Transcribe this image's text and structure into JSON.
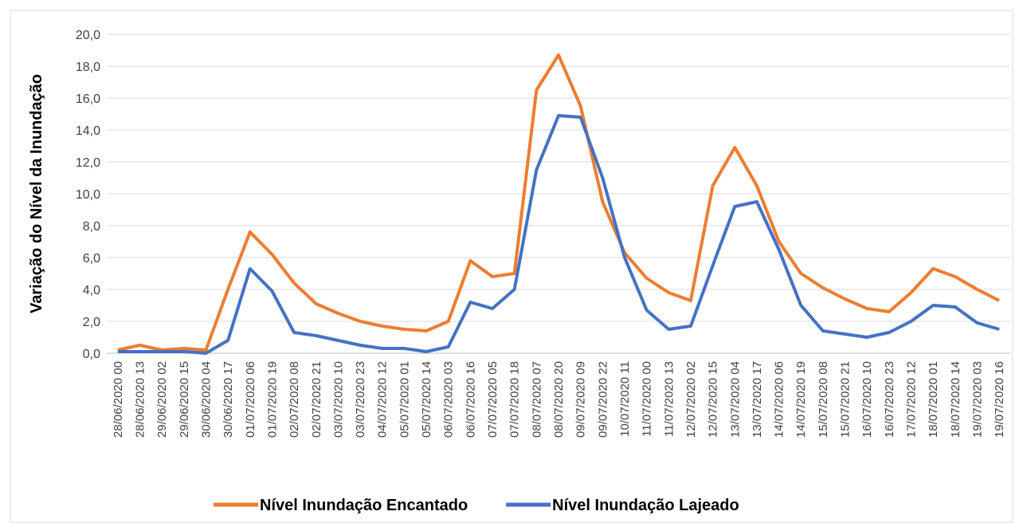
{
  "chart_data": {
    "type": "line",
    "y_label": "Variação  do Nível da Inundação",
    "categories": [
      "28/06/2020 00",
      "28/06/2020 13",
      "29/06/2020 02",
      "29/06/2020 15",
      "30/06/2020 04",
      "30/06/2020 17",
      "01/07/2020 06",
      "01/07/2020 19",
      "02/07/2020 08",
      "02/07/2020 21",
      "03/07/2020 10",
      "03/07/2020 23",
      "04/07/2020 12",
      "05/07/2020 01",
      "05/07/2020 14",
      "06/07/2020 03",
      "06/07/2020 16",
      "07/07/2020 05",
      "07/07/2020 18",
      "08/07/2020 07",
      "08/07/2020 20",
      "09/07/2020 09",
      "09/07/2020 22",
      "10/07/2020 11",
      "11/07/2020 00",
      "11/07/2020 13",
      "12/07/2020 02",
      "12/07/2020 15",
      "13/07/2020 04",
      "13/07/2020 17",
      "14/07/2020 06",
      "14/07/2020 19",
      "15/07/2020 08",
      "15/07/2020 21",
      "16/07/2020 10",
      "16/07/2020 23",
      "17/07/2020 12",
      "18/07/2020 01",
      "18/07/2020 14",
      "19/07/2020 03",
      "19/07/2020 16"
    ],
    "series": [
      {
        "name": "Nível Inundação Encantado",
        "color": "#ed7d31",
        "values": [
          0.2,
          0.5,
          0.2,
          0.3,
          0.2,
          4.0,
          7.6,
          6.2,
          4.4,
          3.1,
          2.5,
          2.0,
          1.7,
          1.5,
          1.4,
          2.0,
          5.8,
          4.8,
          5.0,
          16.5,
          18.7,
          15.5,
          9.5,
          6.3,
          4.7,
          3.8,
          3.3,
          10.5,
          12.9,
          10.5,
          7.0,
          5.0,
          4.1,
          3.4,
          2.8,
          2.6,
          3.8,
          5.3,
          4.8,
          4.0,
          3.3
        ]
      },
      {
        "name": "Nível Inundação Lajeado",
        "color": "#4472c4",
        "values": [
          0.1,
          0.1,
          0.1,
          0.1,
          0.0,
          0.8,
          5.3,
          3.9,
          1.3,
          1.1,
          0.8,
          0.5,
          0.3,
          0.3,
          0.1,
          0.4,
          3.2,
          2.8,
          4.0,
          11.5,
          14.9,
          14.8,
          11.0,
          6.0,
          2.7,
          1.5,
          1.7,
          5.5,
          9.2,
          9.5,
          6.5,
          3.0,
          1.4,
          1.2,
          1.0,
          1.3,
          2.0,
          3.0,
          2.9,
          1.9,
          1.5
        ]
      }
    ],
    "ylim": [
      0,
      20
    ],
    "yticks": [
      {
        "value": 0,
        "label": "0,0"
      },
      {
        "value": 2,
        "label": "2,0"
      },
      {
        "value": 4,
        "label": "4,0"
      },
      {
        "value": 6,
        "label": "6,0"
      },
      {
        "value": 8,
        "label": "8,0"
      },
      {
        "value": 10,
        "label": "10,0"
      },
      {
        "value": 12,
        "label": "12,0"
      },
      {
        "value": 14,
        "label": "14,0"
      },
      {
        "value": 16,
        "label": "16,0"
      },
      {
        "value": 18,
        "label": "18,0"
      },
      {
        "value": 20,
        "label": "20,0"
      }
    ],
    "grid": true,
    "legend": "bottom"
  }
}
